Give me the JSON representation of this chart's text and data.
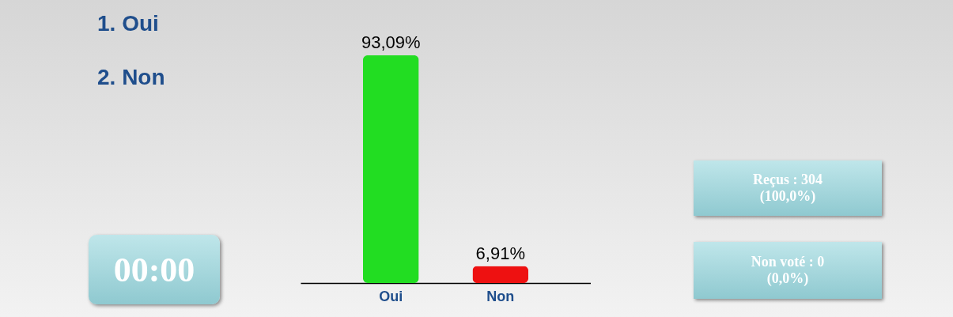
{
  "chart_data": {
    "type": "bar",
    "categories": [
      "Oui",
      "Non"
    ],
    "values": [
      93.09,
      6.91
    ],
    "colors": [
      "#22dd22",
      "#ee1111"
    ],
    "value_labels": [
      "93,09%",
      "6,91%"
    ],
    "annotations": [
      "1.  Oui",
      "2.  Non",
      "00:00",
      "Reçus : 304\n(100,0%)",
      "Non voté : 0\n(0,0%)"
    ]
  }
}
